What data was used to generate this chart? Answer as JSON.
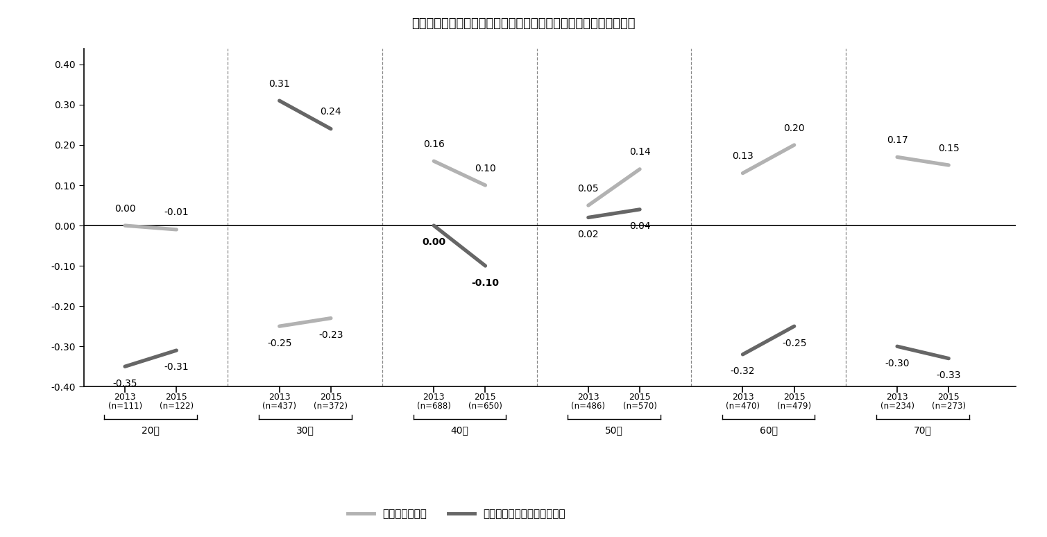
{
  "title": "図表３　金融リテラシーに関連する因子得点の推移〔年齢階層別〕",
  "age_groups": [
    "20代",
    "30代",
    "40代",
    "50代",
    "60代",
    "70代"
  ],
  "x_2013": [
    1.0,
    4.0,
    7.0,
    10.0,
    13.0,
    16.0
  ],
  "x_2015": [
    2.0,
    5.0,
    8.0,
    11.0,
    14.0,
    17.0
  ],
  "divider_x": [
    3.0,
    6.0,
    9.0,
    12.0,
    15.0
  ],
  "financial_literacy_2013": [
    0.0,
    -0.25,
    0.16,
    0.05,
    0.13,
    0.17
  ],
  "financial_literacy_2015": [
    -0.01,
    -0.23,
    0.1,
    0.14,
    0.2,
    0.15
  ],
  "consulting_2013": [
    -0.35,
    0.31,
    0.0,
    0.02,
    -0.32,
    -0.3
  ],
  "consulting_2015": [
    -0.31,
    0.24,
    -0.1,
    0.04,
    -0.25,
    -0.33
  ],
  "year_labels": [
    "2013",
    "2015",
    "2013",
    "2015",
    "2013",
    "2015",
    "2013",
    "2015",
    "2013",
    "2015",
    "2013",
    "2015"
  ],
  "n_labels": [
    "(n=111)",
    "(n=122)",
    "(n=437)",
    "(n=372)",
    "(n=688)",
    "(n=650)",
    "(n=486)",
    "(n=570)",
    "(n=470)",
    "(n=479)",
    "(n=234)",
    "(n=273)"
  ],
  "color_literacy": "#b2b2b2",
  "color_consulting": "#666666",
  "ylim": [
    -0.4,
    0.44
  ],
  "yticks": [
    -0.4,
    -0.3,
    -0.2,
    -0.1,
    0.0,
    0.1,
    0.2,
    0.3,
    0.4
  ],
  "legend_labels": [
    "金融リテラシー",
    "コンサルティング／情報希求"
  ],
  "consulting_bold_group": 2,
  "label_positions": {
    "0": [
      "top",
      "top",
      "bottom",
      "bottom"
    ],
    "1": [
      "bottom",
      "bottom",
      "top",
      "top"
    ],
    "2": [
      "top",
      "top",
      "bottom",
      "bottom"
    ],
    "3": [
      "top",
      "top",
      "bottom",
      "bottom"
    ],
    "4": [
      "top",
      "top",
      "bottom",
      "bottom"
    ],
    "5": [
      "bottom",
      "top",
      "bottom",
      "bottom"
    ]
  }
}
